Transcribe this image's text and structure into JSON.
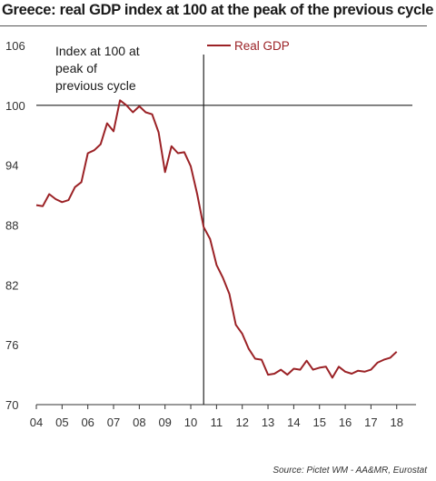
{
  "title": "Greece: real GDP index at 100 at the peak of the previous cycle",
  "source": "Source: Pictet WM - AA&MR, Eurostat",
  "annotation": [
    "Index at 100 at",
    "peak of",
    "previous cycle"
  ],
  "colors": {
    "series": "#9b2226",
    "axis": "#333333",
    "reference": "#222222"
  },
  "chart_data": {
    "type": "line",
    "title": "Greece: real GDP index at 100 at the peak of the previous cycle",
    "xlabel": "",
    "ylabel": "",
    "xlim": [
      2004.0,
      2018.75
    ],
    "ylim": [
      70,
      106
    ],
    "x_ticks": [
      {
        "value": 2004,
        "label": "04"
      },
      {
        "value": 2005,
        "label": "05"
      },
      {
        "value": 2006,
        "label": "06"
      },
      {
        "value": 2007,
        "label": "07"
      },
      {
        "value": 2008,
        "label": "08"
      },
      {
        "value": 2009,
        "label": "09"
      },
      {
        "value": 2010,
        "label": "10"
      },
      {
        "value": 2011,
        "label": "11"
      },
      {
        "value": 2012,
        "label": "12"
      },
      {
        "value": 2013,
        "label": "13"
      },
      {
        "value": 2014,
        "label": "14"
      },
      {
        "value": 2015,
        "label": "15"
      },
      {
        "value": 2016,
        "label": "16"
      },
      {
        "value": 2017,
        "label": "17"
      },
      {
        "value": 2018,
        "label": "18"
      }
    ],
    "y_ticks": [
      70,
      76,
      82,
      88,
      94,
      100,
      106
    ],
    "reference_line_y": 100,
    "vertical_marker_x": 2010.5,
    "legend_position": "top",
    "series": [
      {
        "name": "Real GDP",
        "x": [
          2004.0,
          2004.25,
          2004.5,
          2004.75,
          2005.0,
          2005.25,
          2005.5,
          2005.75,
          2006.0,
          2006.25,
          2006.5,
          2006.75,
          2007.0,
          2007.25,
          2007.5,
          2007.75,
          2008.0,
          2008.25,
          2008.5,
          2008.75,
          2009.0,
          2009.25,
          2009.5,
          2009.75,
          2010.0,
          2010.25,
          2010.5,
          2010.75,
          2011.0,
          2011.25,
          2011.5,
          2011.75,
          2012.0,
          2012.25,
          2012.5,
          2012.75,
          2013.0,
          2013.25,
          2013.5,
          2013.75,
          2014.0,
          2014.25,
          2014.5,
          2014.75,
          2015.0,
          2015.25,
          2015.5,
          2015.75,
          2016.0,
          2016.25,
          2016.5,
          2016.75,
          2017.0,
          2017.25,
          2017.5,
          2017.75,
          2018.0
        ],
        "values": [
          90.0,
          89.9,
          91.1,
          90.6,
          90.3,
          90.5,
          91.8,
          92.3,
          95.2,
          95.5,
          96.1,
          98.2,
          97.4,
          100.5,
          100.0,
          99.3,
          99.9,
          99.3,
          99.1,
          97.3,
          93.3,
          95.9,
          95.2,
          95.3,
          93.9,
          91.1,
          87.8,
          86.6,
          84.0,
          82.7,
          81.1,
          78.0,
          77.1,
          75.6,
          74.6,
          74.5,
          73.0,
          73.1,
          73.5,
          73.0,
          73.6,
          73.5,
          74.4,
          73.5,
          73.7,
          73.8,
          72.7,
          73.8,
          73.3,
          73.1,
          73.4,
          73.3,
          73.5,
          74.2,
          74.5,
          74.7,
          75.3
        ]
      }
    ]
  }
}
